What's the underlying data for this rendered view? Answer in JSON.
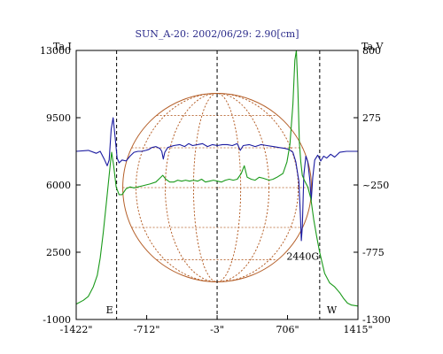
{
  "chart_data": {
    "type": "line",
    "title": "SUN_A-20: 2002/06/29: 2.90[cm]",
    "left_axis": {
      "label": "Ta,I",
      "ylim": [
        -1000,
        13000
      ],
      "ticks": [
        {
          "value": 13000,
          "label": "13000"
        },
        {
          "value": 9500,
          "label": "9500"
        },
        {
          "value": 6000,
          "label": "6000"
        },
        {
          "value": 2500,
          "label": "2500"
        },
        {
          "value": -1000,
          "label": "-1000"
        }
      ]
    },
    "right_axis": {
      "label": "Ta,V",
      "ylim": [
        -1300,
        800
      ],
      "ticks": [
        {
          "value": 800,
          "label": "800"
        },
        {
          "value": 275,
          "label": "275"
        },
        {
          "value": -250,
          "label": "~250"
        },
        {
          "value": -775,
          "label": "-775"
        },
        {
          "value": -1300,
          "label": "-1300"
        }
      ]
    },
    "x_axis": {
      "unit": "arcsec",
      "xlim": [
        -1422,
        1415
      ],
      "ticks": [
        {
          "value": -1422,
          "label": "-1422\""
        },
        {
          "value": -712,
          "label": "-712\""
        },
        {
          "value": -3,
          "label": "-3\""
        },
        {
          "value": 706,
          "label": "706\""
        },
        {
          "value": 1415,
          "label": "1415\""
        }
      ]
    },
    "markers": [
      {
        "x": -1015,
        "label": "E"
      },
      {
        "x": -3,
        "label": ""
      },
      {
        "x": 1030,
        "label": "W"
      }
    ],
    "annotations": [
      {
        "text": "2440G",
        "x": 860,
        "y_left": 2100
      }
    ],
    "solar_disk": {
      "center_x": -3,
      "radius_arcsec": 950,
      "color": "#b5602a"
    },
    "series": [
      {
        "axis": "left",
        "color": "#1a1aa0",
        "points": [
          [
            -1422,
            7750
          ],
          [
            -1300,
            7800
          ],
          [
            -1220,
            7650
          ],
          [
            -1180,
            7750
          ],
          [
            -1140,
            7350
          ],
          [
            -1110,
            7000
          ],
          [
            -1090,
            7300
          ],
          [
            -1070,
            8900
          ],
          [
            -1050,
            9500
          ],
          [
            -1030,
            8500
          ],
          [
            -1010,
            7400
          ],
          [
            -990,
            7150
          ],
          [
            -960,
            7300
          ],
          [
            -920,
            7250
          ],
          [
            -880,
            7500
          ],
          [
            -840,
            7700
          ],
          [
            -800,
            7750
          ],
          [
            -760,
            7750
          ],
          [
            -720,
            7800
          ],
          [
            -690,
            7850
          ],
          [
            -660,
            7950
          ],
          [
            -620,
            8000
          ],
          [
            -580,
            7900
          ],
          [
            -560,
            7750
          ],
          [
            -545,
            7350
          ],
          [
            -530,
            7700
          ],
          [
            -500,
            7950
          ],
          [
            -440,
            8050
          ],
          [
            -380,
            8100
          ],
          [
            -330,
            8000
          ],
          [
            -290,
            8150
          ],
          [
            -250,
            8050
          ],
          [
            -200,
            8100
          ],
          [
            -150,
            8150
          ],
          [
            -100,
            8000
          ],
          [
            -50,
            8100
          ],
          [
            0,
            8050
          ],
          [
            50,
            8100
          ],
          [
            100,
            8100
          ],
          [
            150,
            8050
          ],
          [
            200,
            8150
          ],
          [
            230,
            7800
          ],
          [
            260,
            8050
          ],
          [
            320,
            8100
          ],
          [
            380,
            8000
          ],
          [
            440,
            8100
          ],
          [
            500,
            8050
          ],
          [
            560,
            8000
          ],
          [
            620,
            7950
          ],
          [
            680,
            7900
          ],
          [
            720,
            7850
          ],
          [
            760,
            7700
          ],
          [
            790,
            7200
          ],
          [
            820,
            6200
          ],
          [
            835,
            4500
          ],
          [
            845,
            3100
          ],
          [
            855,
            3800
          ],
          [
            870,
            6500
          ],
          [
            890,
            7500
          ],
          [
            910,
            7200
          ],
          [
            930,
            6300
          ],
          [
            945,
            5200
          ],
          [
            960,
            6400
          ],
          [
            980,
            7300
          ],
          [
            1010,
            7550
          ],
          [
            1040,
            7250
          ],
          [
            1070,
            7500
          ],
          [
            1100,
            7400
          ],
          [
            1140,
            7600
          ],
          [
            1180,
            7450
          ],
          [
            1230,
            7700
          ],
          [
            1300,
            7750
          ],
          [
            1415,
            7750
          ]
        ]
      },
      {
        "axis": "left",
        "color": "#1a9a1a",
        "points": [
          [
            -1422,
            -200
          ],
          [
            -1350,
            0
          ],
          [
            -1300,
            200
          ],
          [
            -1250,
            700
          ],
          [
            -1210,
            1300
          ],
          [
            -1180,
            2200
          ],
          [
            -1150,
            3500
          ],
          [
            -1120,
            5000
          ],
          [
            -1100,
            6000
          ],
          [
            -1080,
            7000
          ],
          [
            -1065,
            7700
          ],
          [
            -1045,
            7000
          ],
          [
            -1020,
            5900
          ],
          [
            -990,
            5500
          ],
          [
            -960,
            5500
          ],
          [
            -920,
            5800
          ],
          [
            -880,
            5900
          ],
          [
            -840,
            5850
          ],
          [
            -800,
            5900
          ],
          [
            -760,
            5950
          ],
          [
            -720,
            6000
          ],
          [
            -680,
            6050
          ],
          [
            -620,
            6150
          ],
          [
            -580,
            6350
          ],
          [
            -550,
            6500
          ],
          [
            -520,
            6300
          ],
          [
            -480,
            6150
          ],
          [
            -440,
            6150
          ],
          [
            -400,
            6250
          ],
          [
            -360,
            6200
          ],
          [
            -320,
            6250
          ],
          [
            -280,
            6200
          ],
          [
            -240,
            6250
          ],
          [
            -200,
            6200
          ],
          [
            -160,
            6300
          ],
          [
            -120,
            6150
          ],
          [
            -80,
            6200
          ],
          [
            -40,
            6250
          ],
          [
            0,
            6200
          ],
          [
            40,
            6150
          ],
          [
            80,
            6250
          ],
          [
            120,
            6300
          ],
          [
            160,
            6250
          ],
          [
            200,
            6300
          ],
          [
            240,
            6600
          ],
          [
            270,
            7000
          ],
          [
            300,
            6400
          ],
          [
            340,
            6300
          ],
          [
            380,
            6250
          ],
          [
            420,
            6400
          ],
          [
            460,
            6350
          ],
          [
            520,
            6250
          ],
          [
            560,
            6300
          ],
          [
            600,
            6400
          ],
          [
            660,
            6600
          ],
          [
            700,
            7200
          ],
          [
            730,
            8100
          ],
          [
            760,
            10200
          ],
          [
            780,
            12500
          ],
          [
            795,
            13000
          ],
          [
            810,
            11000
          ],
          [
            825,
            8200
          ],
          [
            840,
            7200
          ],
          [
            855,
            6500
          ],
          [
            880,
            6200
          ],
          [
            910,
            5900
          ],
          [
            940,
            5300
          ],
          [
            970,
            4200
          ],
          [
            1000,
            3300
          ],
          [
            1030,
            2500
          ],
          [
            1080,
            1400
          ],
          [
            1130,
            900
          ],
          [
            1180,
            700
          ],
          [
            1230,
            400
          ],
          [
            1270,
            100
          ],
          [
            1310,
            -150
          ],
          [
            1350,
            -250
          ],
          [
            1415,
            -300
          ]
        ]
      }
    ]
  }
}
